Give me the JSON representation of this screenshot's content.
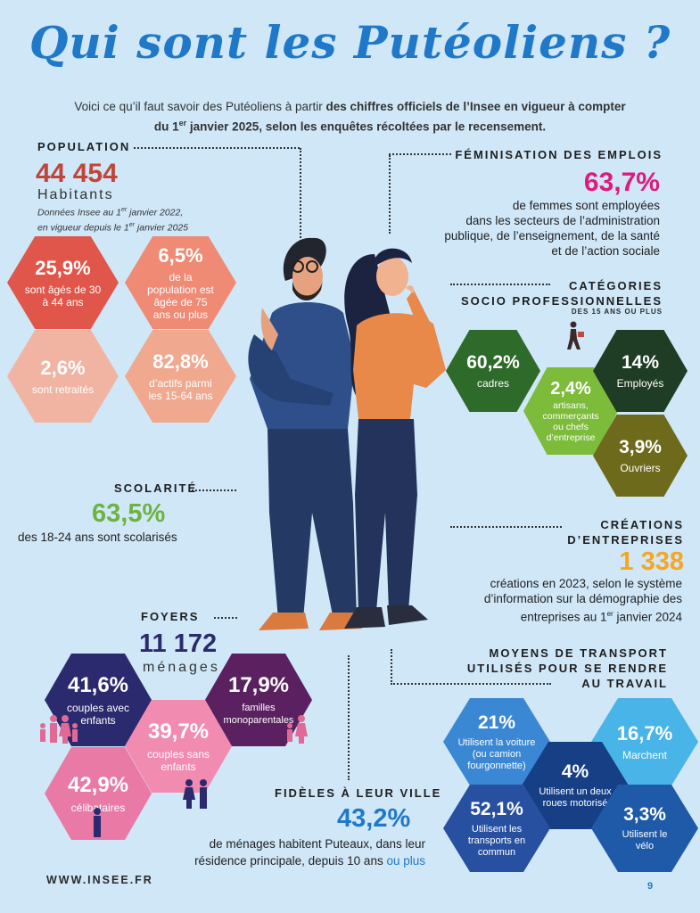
{
  "title": "Qui sont les Putéoliens ?",
  "intro": {
    "line1_a": "Voici ce qu’il faut savoir des Putéoliens à partir ",
    "line1_b": "des chiffres officiels de l’Insee en vigueur à compter",
    "line2_a": "du 1",
    "line2_sup": "er",
    "line2_b": " janvier 2025, selon les enquêtes récoltées par le recensement."
  },
  "population": {
    "heading": "POPULATION",
    "value": "44 454",
    "unit": "Habitants",
    "note1_a": "Données Insee au 1",
    "note1_sup": "er",
    "note1_b": " janvier 2022,",
    "note2_a": "en vigueur depuis le 1",
    "note2_sup": "er",
    "note2_b": " janvier 2025",
    "cells": [
      {
        "value": "25,9%",
        "text": "sont âgés de 30 à 44 ans",
        "color": "#e0564a"
      },
      {
        "value": "6,5%",
        "text": "de la population est âgée de 75 ans ou plus",
        "color": "#ef8a74"
      },
      {
        "value": "2,6%",
        "text": "sont retraités",
        "color": "#f1b4a3"
      },
      {
        "value": "82,8%",
        "text": "d’actifs parmi les 15-64 ans",
        "color": "#f0a88f"
      }
    ]
  },
  "feminisation": {
    "heading": "FÉMINISATION DES EMPLOIS",
    "value": "63,7%",
    "value_color": "#e0197d",
    "text": [
      "de femmes sont employées",
      "dans les secteurs de l’administration",
      "publique, de l’enseignement, de la santé",
      "et de l’action sociale"
    ]
  },
  "categories": {
    "heading1": "CATÉGORIES",
    "heading2": "SOCIO PROFESSIONNELLES",
    "sub": "DES 15 ANS OU PLUS",
    "cells": [
      {
        "value": "60,2%",
        "text": "cadres",
        "color": "#2e6b2a"
      },
      {
        "value": "2,4%",
        "text": "artisans, commerçants ou chefs d’entreprise",
        "color": "#7dbb3b"
      },
      {
        "value": "14%",
        "text": "Employés",
        "color": "#1f3d24"
      },
      {
        "value": "3,9%",
        "text": "Ouvriers",
        "color": "#6e6a1c"
      }
    ]
  },
  "scolarite": {
    "heading": "SCOLARITÉ",
    "value": "63,5%",
    "value_color": "#6cb33f",
    "text": "des 18-24 ans sont scolarisés"
  },
  "creations": {
    "heading1": "CRÉATIONS",
    "heading2": "D’ENTREPRISES",
    "value": "1 338",
    "value_color": "#f5a623",
    "line1": "créations en 2023, selon le système",
    "line2": "d’information sur la démographie des",
    "line3_a": "entreprises au 1",
    "line3_sup": "er",
    "line3_b": " janvier 2024"
  },
  "foyers": {
    "heading": "FOYERS",
    "value": "11 172",
    "unit": "ménages",
    "cells": [
      {
        "value": "41,6%",
        "text": "couples avec enfants",
        "color": "#2c2a6e"
      },
      {
        "value": "17,9%",
        "text": "familles monoparentales",
        "color": "#5a2060"
      },
      {
        "value": "39,7%",
        "text": "couples sans enfants",
        "color": "#f28bb0"
      },
      {
        "value": "42,9%",
        "text": "célibataires",
        "color": "#e97aa5"
      }
    ]
  },
  "transport": {
    "heading1": "MOYENS DE TRANSPORT",
    "heading2": "UTILISÉS POUR SE RENDRE",
    "heading3": "AU TRAVAIL",
    "cells": [
      {
        "value": "21%",
        "text": "Utilisent la voiture (ou camion fourgonnette)",
        "color": "#3a87d4"
      },
      {
        "value": "16,7%",
        "text": "Marchent",
        "color": "#48b4e8"
      },
      {
        "value": "4%",
        "text": "Utilisent un deux roues motorisé",
        "color": "#163f86"
      },
      {
        "value": "52,1%",
        "text": "Utilisent les transports en commun",
        "color": "#2850a0"
      },
      {
        "value": "3,3%",
        "text": "Utilisent le vélo",
        "color": "#1f5aa8"
      }
    ]
  },
  "fideles": {
    "heading": "FIDÈLES À LEUR VILLE",
    "value": "43,2%",
    "value_color": "#1f78c8",
    "line1": "de ménages habitent Puteaux, dans leur",
    "line2_a": "résidence principale, depuis 10 ans ",
    "line2_b": "ou plus"
  },
  "footer": {
    "source": "WWW.INSEE.FR",
    "page": "9"
  },
  "icons": [
    "person-icon",
    "walking-worker-icon",
    "family-icon",
    "couple-icon",
    "single-parent-icon"
  ]
}
